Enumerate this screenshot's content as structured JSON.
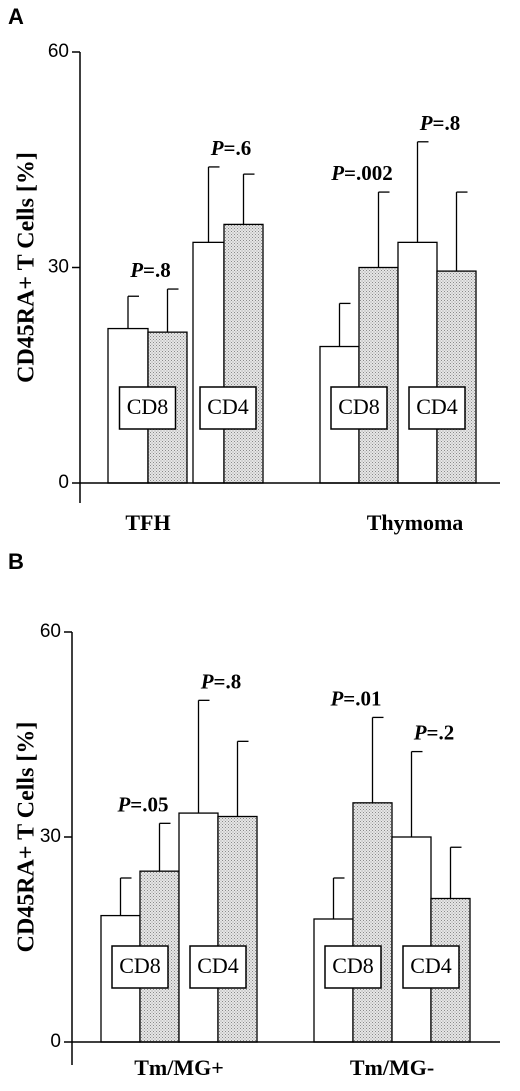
{
  "chart_data": [
    {
      "type": "bar",
      "panel_label": "A",
      "ylabel": "CD45RA+ T Cells [%]",
      "ylim": [
        0,
        60
      ],
      "yticks": [
        0,
        30,
        60
      ],
      "groups": [
        {
          "label": "TFH",
          "subgroups": [
            {
              "label": "CD8",
              "p_prefix": "P",
              "p_value": "=.8",
              "bars": [
                {
                  "fill": "white",
                  "value": 21.5,
                  "error": 4.5
                },
                {
                  "fill": "dotted",
                  "value": 21.0,
                  "error": 6.0
                }
              ]
            },
            {
              "label": "CD4",
              "p_prefix": "P",
              "p_value": "=.6",
              "bars": [
                {
                  "fill": "white",
                  "value": 33.5,
                  "error": 10.5
                },
                {
                  "fill": "dotted",
                  "value": 36.0,
                  "error": 7.0
                }
              ]
            }
          ]
        },
        {
          "label": "Thymoma",
          "subgroups": [
            {
              "label": "CD8",
              "p_prefix": "P",
              "p_value": "=.002",
              "bars": [
                {
                  "fill": "white",
                  "value": 19.0,
                  "error": 6.0
                },
                {
                  "fill": "dotted",
                  "value": 30.0,
                  "error": 10.5
                }
              ]
            },
            {
              "label": "CD4",
              "p_prefix": "P",
              "p_value": "=.8",
              "bars": [
                {
                  "fill": "white",
                  "value": 33.5,
                  "error": 14.0
                },
                {
                  "fill": "dotted",
                  "value": 29.5,
                  "error": 11.0
                }
              ]
            }
          ]
        }
      ]
    },
    {
      "type": "bar",
      "panel_label": "B",
      "ylabel": "CD45RA+ T Cells [%]",
      "ylim": [
        0,
        60
      ],
      "yticks": [
        0,
        30,
        60
      ],
      "groups": [
        {
          "label": "Tm/MG+",
          "subgroups": [
            {
              "label": "CD8",
              "p_prefix": "P",
              "p_value": "=.05",
              "bars": [
                {
                  "fill": "white",
                  "value": 18.5,
                  "error": 5.5
                },
                {
                  "fill": "dotted",
                  "value": 25.0,
                  "error": 7.0
                }
              ]
            },
            {
              "label": "CD4",
              "p_prefix": "P",
              "p_value": "=.8",
              "bars": [
                {
                  "fill": "white",
                  "value": 33.5,
                  "error": 16.5
                },
                {
                  "fill": "dotted",
                  "value": 33.0,
                  "error": 11.0
                }
              ]
            }
          ]
        },
        {
          "label": "Tm/MG-",
          "subgroups": [
            {
              "label": "CD8",
              "p_prefix": "P",
              "p_value": "=.01",
              "bars": [
                {
                  "fill": "white",
                  "value": 18.0,
                  "error": 6.0
                },
                {
                  "fill": "dotted",
                  "value": 35.0,
                  "error": 12.5
                }
              ]
            },
            {
              "label": "CD4",
              "p_prefix": "P",
              "p_value": "=.2",
              "bars": [
                {
                  "fill": "white",
                  "value": 30.0,
                  "error": 12.5
                },
                {
                  "fill": "dotted",
                  "value": 21.0,
                  "error": 7.5
                }
              ]
            }
          ]
        }
      ]
    }
  ]
}
